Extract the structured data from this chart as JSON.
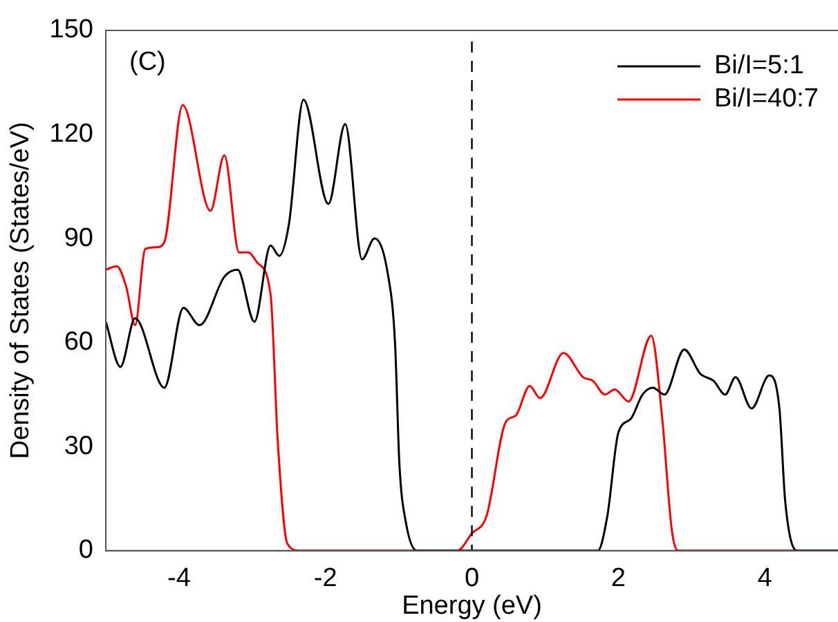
{
  "chart_data": {
    "type": "line",
    "xlabel": "Energy (eV)",
    "ylabel": "Density of States (States/eV)",
    "annotations": [
      "(C)"
    ],
    "xlim": [
      -5,
      5
    ],
    "xticks": [
      -4,
      -2,
      0,
      2,
      4
    ],
    "ylim": [
      0,
      150
    ],
    "yticks": [
      0,
      30,
      60,
      90,
      120,
      150
    ],
    "grid": false,
    "legend": "top right",
    "marker": "none",
    "line_style": "solid",
    "ref_lines": [
      {
        "axis": "x",
        "value": 0,
        "line_style": "dashed",
        "color": "#000000"
      }
    ],
    "series": [
      {
        "name": "Bi/I=5:1",
        "color": "#000000",
        "x": [
          -5,
          -4.8,
          -4.6,
          -4.2,
          -3.94,
          -3.72,
          -3.38,
          -3.2,
          -2.97,
          -2.75,
          -2.63,
          -2.5,
          -2.3,
          -1.96,
          -1.73,
          -1.5,
          -1.33,
          -1.15,
          -1.05,
          -0.99,
          -0.9,
          -0.75,
          1.72,
          1.85,
          2.0,
          2.17,
          2.33,
          2.47,
          2.63,
          2.9,
          3.12,
          3.3,
          3.46,
          3.6,
          3.82,
          4.06,
          4.2,
          4.28,
          4.44,
          5
        ],
        "values": [
          66,
          53,
          67,
          47,
          70,
          65,
          79,
          81,
          66,
          88,
          85,
          94,
          130,
          100,
          123,
          84,
          90,
          80,
          60,
          25,
          8,
          0,
          0,
          10,
          34,
          38,
          45,
          47,
          45,
          58,
          51,
          49,
          45,
          50,
          41,
          50.5,
          41,
          14,
          0,
          0
        ]
      },
      {
        "name": "Bi/I=40:7",
        "color": "#ff0000",
        "x": [
          -5,
          -4.85,
          -4.72,
          -4.6,
          -4.46,
          -4.3,
          -4.2,
          -3.95,
          -3.57,
          -3.38,
          -3.18,
          -3.05,
          -2.93,
          -2.75,
          -2.65,
          -2.52,
          -2.35,
          -0.2,
          0,
          0.2,
          0.46,
          0.6,
          0.79,
          0.93,
          1.25,
          1.52,
          1.65,
          1.82,
          1.95,
          2.14,
          2.45,
          2.6,
          2.73,
          2.82,
          5
        ],
        "values": [
          81,
          82,
          76,
          65,
          87,
          87.5,
          89,
          128.5,
          98,
          114,
          86,
          86,
          83,
          74,
          31,
          2,
          0,
          0,
          5,
          10,
          37,
          39,
          47.5,
          44,
          57,
          50,
          49,
          45,
          46.5,
          43,
          62,
          38,
          6,
          0,
          0
        ]
      }
    ]
  }
}
